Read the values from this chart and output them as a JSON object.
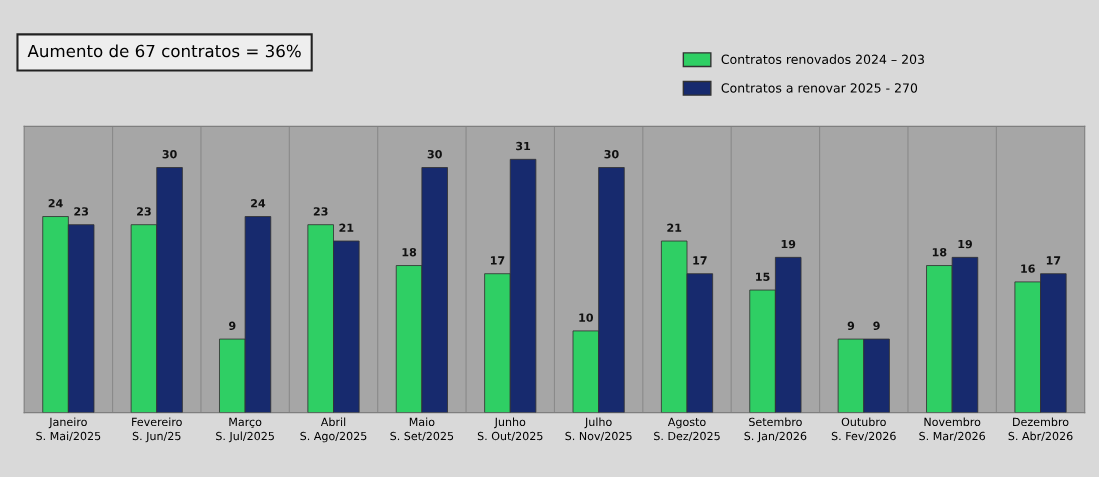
{
  "chart_data": {
    "type": "bar",
    "title": "Aumento de 67 contratos = 36%",
    "categories": [
      "Janeiro\nS. Mai/2025",
      "Fevereiro\nS. Jun/25",
      "Março\nS. Jul/2025",
      "Abril\nS. Ago/2025",
      "Maio\nS. Set/2025",
      "Junho\nS. Out/2025",
      "Julho\nS. Nov/2025",
      "Agosto\nS. Dez/2025",
      "Setembro\nS. Jan/2026",
      "Outubro\nS. Fev/2026",
      "Novembro\nS. Mar/2026",
      "Dezembro\nS. Abr/2026"
    ],
    "series": [
      {
        "name": "Contratos renovados 2024 – 203",
        "color": "#2fcf64",
        "values": [
          24,
          23,
          9,
          23,
          18,
          17,
          10,
          21,
          15,
          9,
          18,
          16
        ]
      },
      {
        "name": "Contratos a renovar 2025 - 270",
        "color": "#172a6e",
        "values": [
          23,
          30,
          24,
          21,
          30,
          31,
          30,
          17,
          19,
          9,
          19,
          17
        ]
      }
    ],
    "data_labels": true,
    "legend": "top right",
    "tick_labels": "x"
  }
}
